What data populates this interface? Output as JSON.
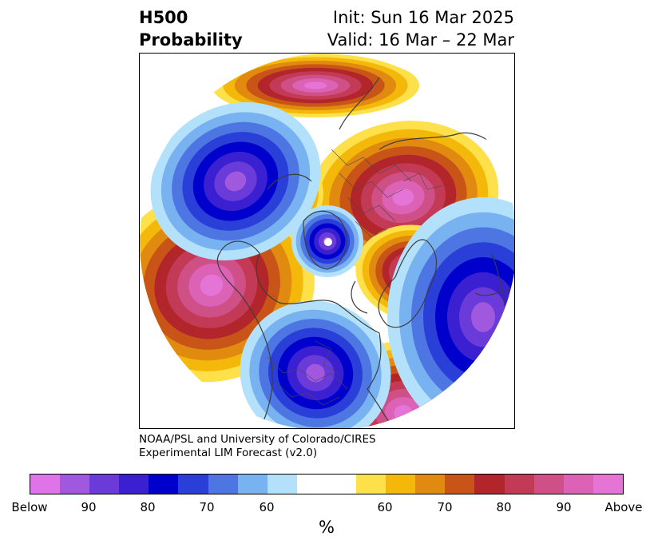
{
  "header": {
    "title_line1": "H500",
    "title_line2": "Probability",
    "init_text": "Init: Sun 16 Mar 2025",
    "valid_text": "Valid: 16 Mar – 22 Mar"
  },
  "credit": {
    "line1": "NOAA/PSL and University of Colorado/CIRES",
    "line2": "Experimental LIM Forecast (v2.0)"
  },
  "colorbar": {
    "colors": [
      "#df74e8",
      "#a058df",
      "#6a3bd8",
      "#3a20d0",
      "#0000cc",
      "#2a3ed8",
      "#4e76e3",
      "#78b2f0",
      "#b3e1fb",
      "#ffffff",
      "#fde04a",
      "#f4b80a",
      "#e08a10",
      "#c85418",
      "#b2252a",
      "#c23a55",
      "#cf4f87",
      "#db62b4",
      "#e474d6"
    ],
    "tick_labels": [
      "Below",
      "90",
      "80",
      "70",
      "60",
      "60",
      "70",
      "80",
      "90",
      "Above"
    ],
    "unit_label": "%"
  }
}
